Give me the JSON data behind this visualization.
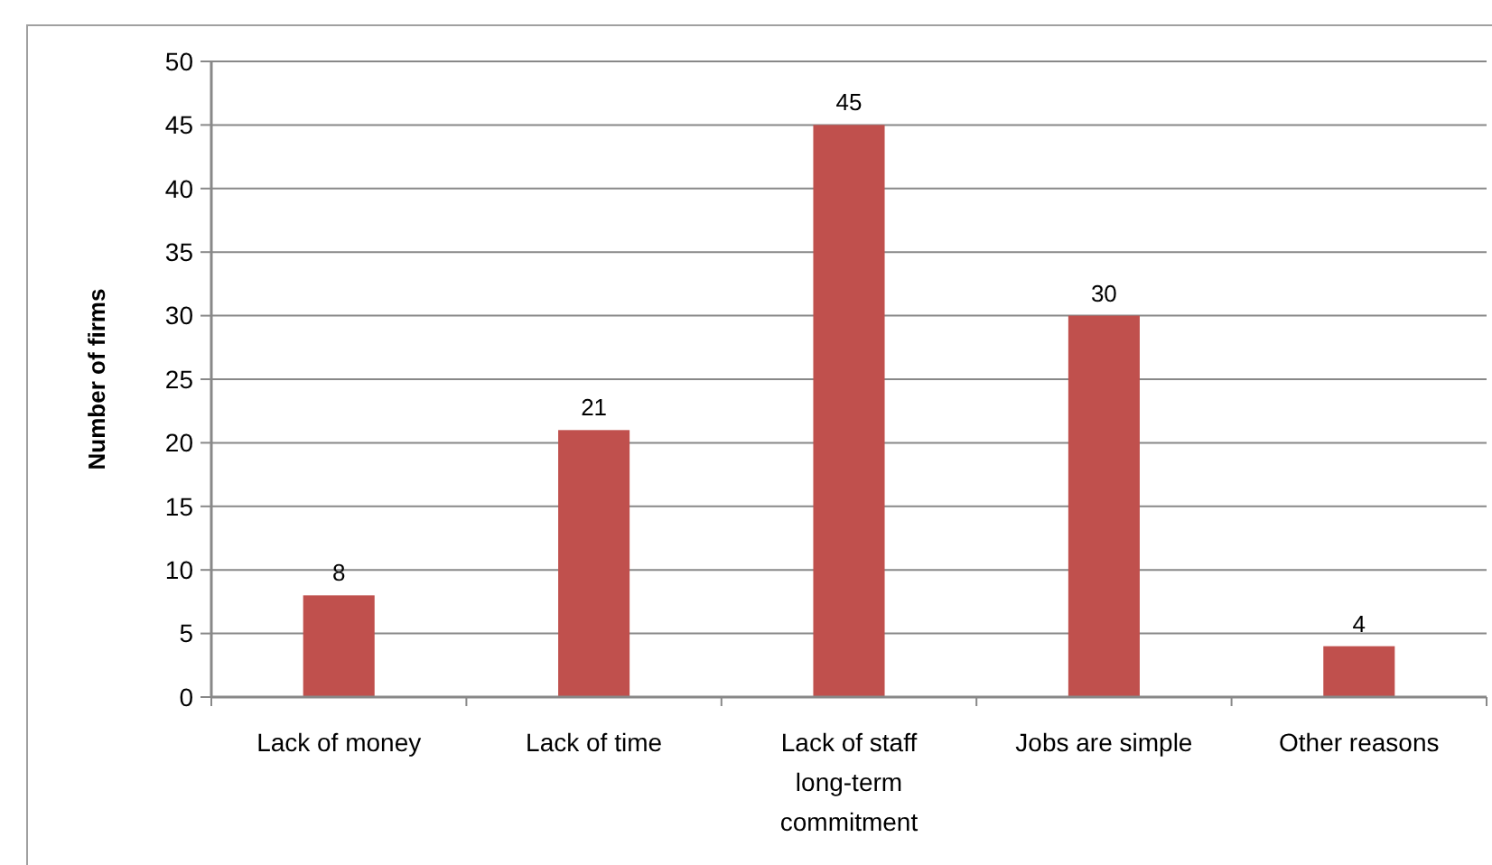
{
  "chart_data": {
    "type": "bar",
    "ylabel": "Number of firms",
    "categories": [
      "Lack of money",
      "Lack of time",
      "Lack of staff long-term commitment",
      "Jobs are simple",
      "Other reasons"
    ],
    "values": [
      8,
      21,
      45,
      30,
      4
    ],
    "color": "#c0504d",
    "ylim": [
      0,
      50
    ],
    "yticks": [
      0,
      5,
      10,
      15,
      20,
      25,
      30,
      35,
      40,
      45,
      50
    ],
    "grid": "y",
    "data_labels": true
  }
}
